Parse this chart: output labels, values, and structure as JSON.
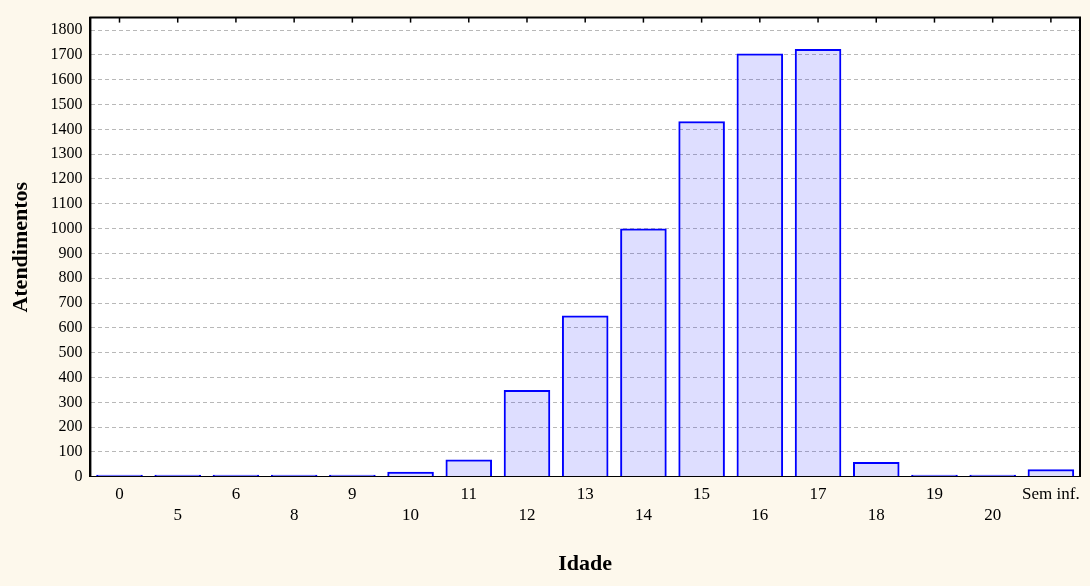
{
  "chart_data": {
    "type": "bar",
    "xlabel": "Idade",
    "ylabel": "Atendimentos",
    "categories": [
      "0",
      "5",
      "6",
      "8",
      "9",
      "10",
      "11",
      "12",
      "13",
      "14",
      "15",
      "16",
      "17",
      "18",
      "19",
      "20",
      "Sem inf."
    ],
    "values": [
      8,
      8,
      8,
      8,
      8,
      20,
      70,
      350,
      650,
      1000,
      1432,
      1705,
      1723,
      60,
      8,
      8,
      30
    ],
    "color": "#0000ff",
    "ylim": [
      0,
      1850
    ],
    "yticks": [
      0,
      100,
      200,
      300,
      400,
      500,
      600,
      700,
      800,
      900,
      1000,
      1100,
      1200,
      1300,
      1400,
      1500,
      1600,
      1700,
      1800
    ],
    "grid": "y"
  }
}
